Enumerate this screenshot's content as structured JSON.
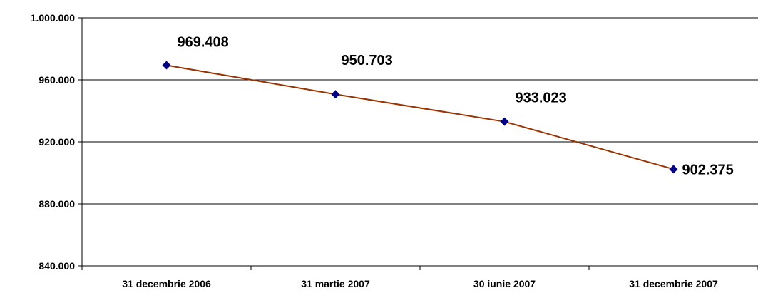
{
  "chart_data": {
    "type": "line",
    "categories": [
      "31 decembrie 2006",
      "31 martie 2007",
      "30 iunie 2007",
      "31 decembrie 2007"
    ],
    "series": [
      {
        "values": [
          969408,
          950703,
          933023,
          902375
        ],
        "labels": [
          "969.408",
          "950.703",
          "933.023",
          "902.375"
        ]
      }
    ],
    "ylim": [
      840000,
      1000000
    ],
    "yticks": [
      840000,
      880000,
      920000,
      960000,
      1000000
    ],
    "ytick_labels": [
      "840.000",
      "880.000",
      "920.000",
      "960.000",
      "1.000.000"
    ],
    "grid": true,
    "colors": {
      "line": "#993300",
      "marker": "#000080",
      "grid": "#000000"
    }
  }
}
